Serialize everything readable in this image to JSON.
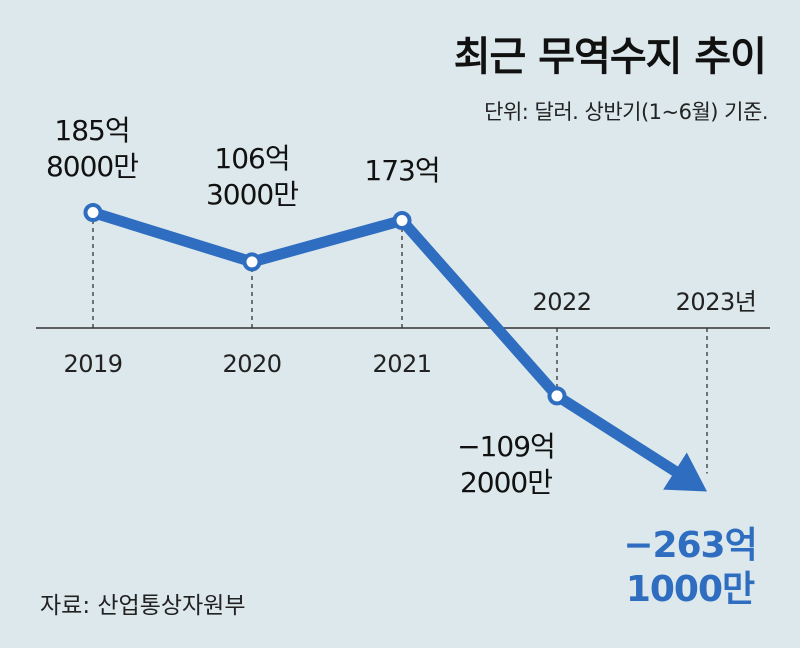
{
  "chart_data": {
    "type": "line",
    "title": "최근 무역수지 추이",
    "subtitle": "단위: 달러. 상반기(1~6월) 기준.",
    "source": "자료: 산업통상자원부",
    "x": [
      "2019",
      "2020",
      "2021",
      "2022",
      "2023년"
    ],
    "values": [
      185.8,
      106.3,
      173,
      -109.2,
      -263.1
    ],
    "point_labels": [
      [
        "185억",
        "8000만"
      ],
      [
        "106억",
        "3000만"
      ],
      [
        "173억"
      ],
      [
        "−109억",
        "2000만"
      ],
      [
        "−263억",
        "1000만"
      ]
    ],
    "colors": {
      "line": "#2f6dc0",
      "highlight_label": "#2f6dc0",
      "background": "#dce8eb"
    }
  }
}
